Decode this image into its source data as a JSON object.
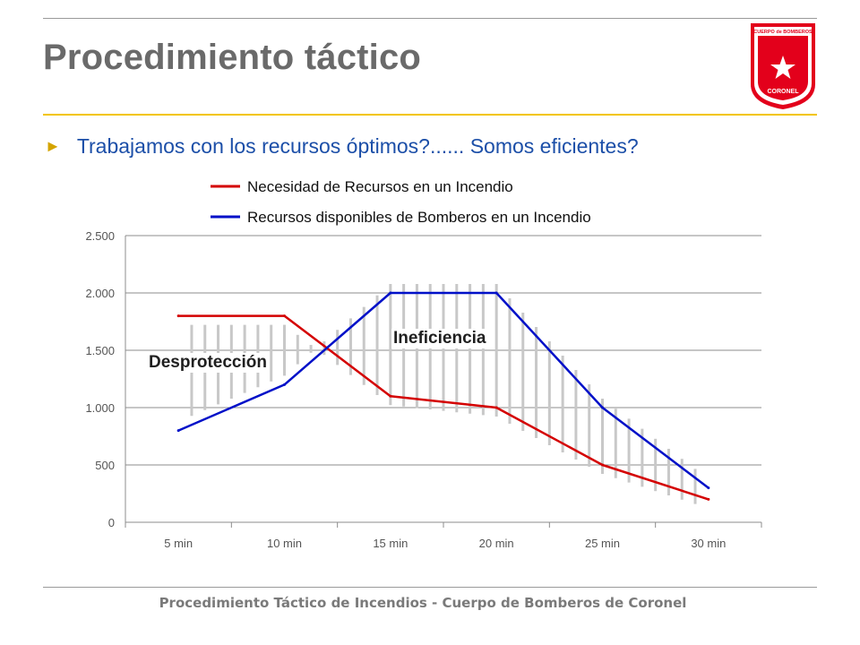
{
  "slide": {
    "title": "Procedimiento táctico",
    "bullet": "Trabajamos con los recursos óptimos?...... Somos eficientes?",
    "bullet_marker": "►",
    "footer": "Procedimiento Táctico de Incendios - Cuerpo de Bomberos de Coronel",
    "colors": {
      "title": "#6a6a6a",
      "accent_rule": "#f2c500",
      "bullet_text": "#1c4fa8",
      "logo_red": "#e3001b"
    }
  },
  "logo": {
    "top_text": "CUERPO de BOMBEROS",
    "bottom_text": "CORONEL",
    "icon": "star-shield-icon"
  },
  "chart_data": {
    "type": "line",
    "categories": [
      "5 min",
      "10 min",
      "15 min",
      "20 min",
      "25 min",
      "30 min"
    ],
    "series": [
      {
        "name": "Necesidad de Recursos en un Incendio",
        "color": "#d40000",
        "values": [
          1800,
          1800,
          1100,
          1000,
          500,
          200
        ]
      },
      {
        "name": "Recursos disponibles de Bomberos en un Incendio",
        "color": "#0010c8",
        "values": [
          800,
          1200,
          2000,
          2000,
          1000,
          300
        ]
      }
    ],
    "ylim": [
      0,
      2500
    ],
    "yticks": [
      0,
      500,
      1000,
      1500,
      2000,
      2500
    ],
    "ytick_labels": [
      "0",
      "500",
      "1.000",
      "1.500",
      "2.000",
      "2.500"
    ],
    "grid": true,
    "legend_position": "top",
    "annotations": [
      {
        "text": "Desprotección",
        "region": "left"
      },
      {
        "text": "Ineficiencia",
        "region": "center"
      }
    ],
    "gap_hatch_color": "#c8c8c8"
  }
}
